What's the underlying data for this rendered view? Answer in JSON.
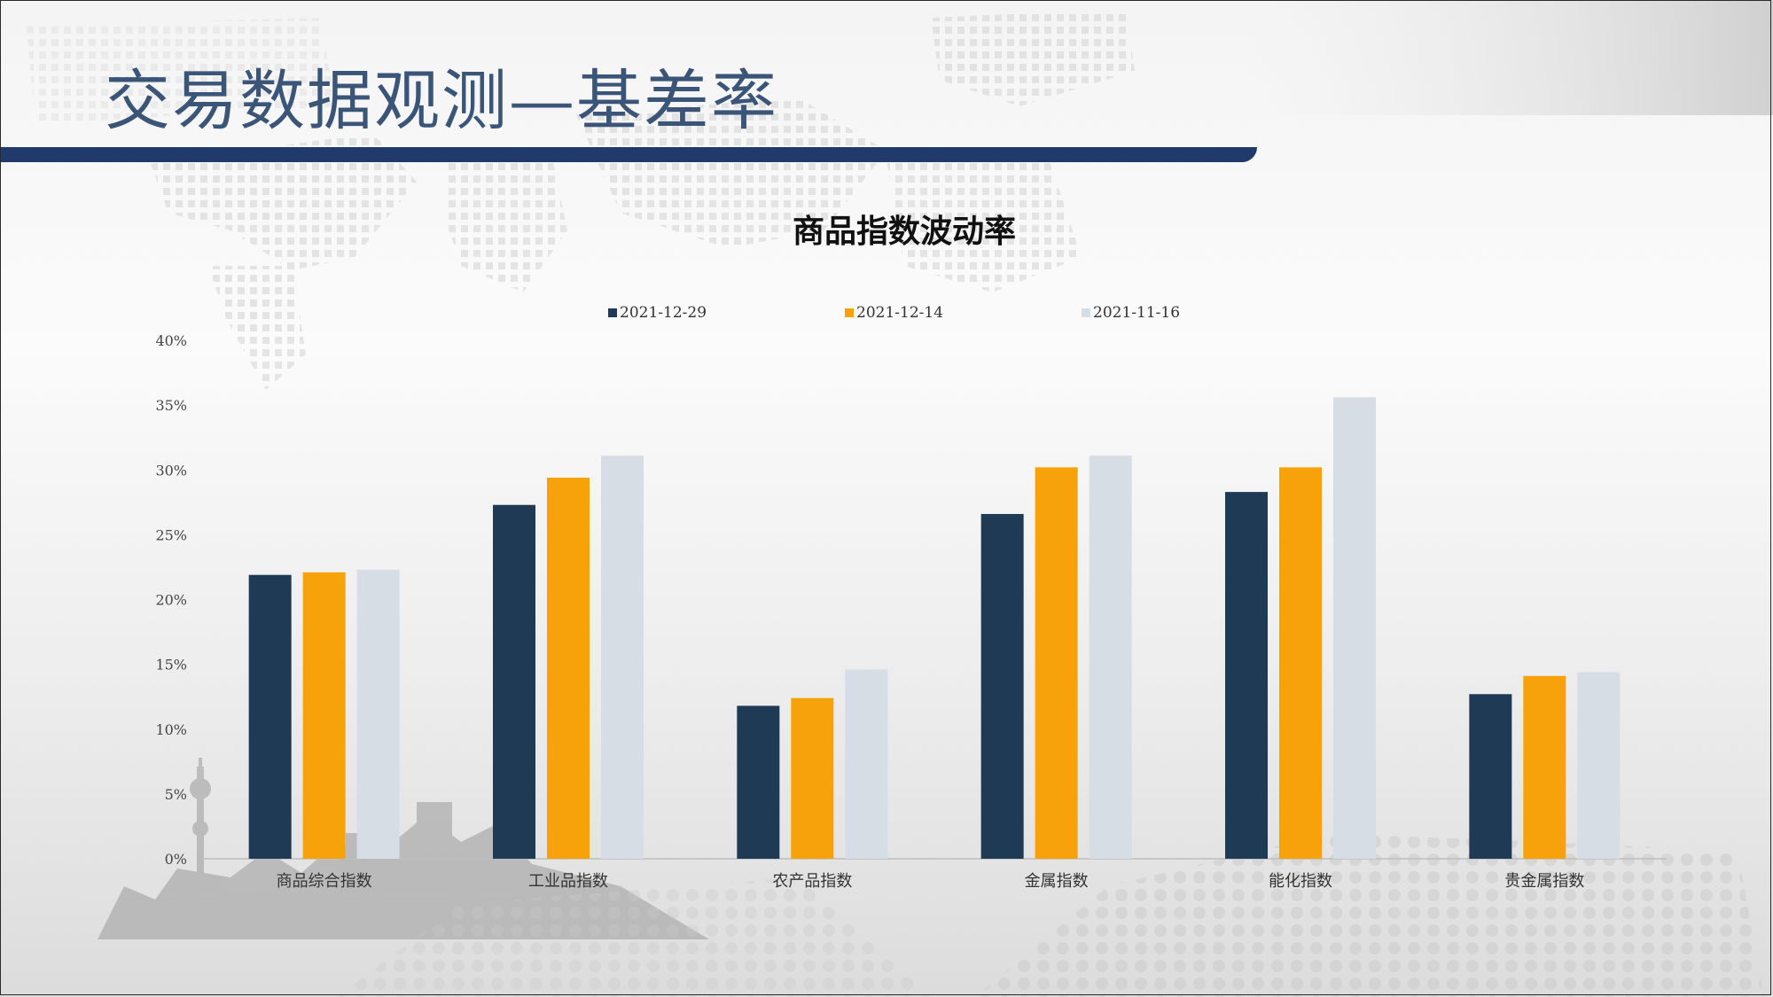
{
  "slide": {
    "title": "交易数据观测—基差率"
  },
  "colors": {
    "title_text": "#3b5578",
    "title_bar": "#1f3a6b",
    "series": [
      "#1f3a54",
      "#f7a20a",
      "#d6dde5"
    ]
  },
  "chart_data": {
    "type": "bar",
    "title": "商品指数波动率",
    "categories": [
      "商品综合指数",
      "工业品指数",
      "农产品指数",
      "金属指数",
      "能化指数",
      "贵金属指数"
    ],
    "series": [
      {
        "name": "2021-12-29",
        "values": [
          0.219,
          0.273,
          0.118,
          0.266,
          0.283,
          0.127
        ]
      },
      {
        "name": "2021-12-14",
        "values": [
          0.221,
          0.294,
          0.124,
          0.302,
          0.302,
          0.141
        ]
      },
      {
        "name": "2021-11-16",
        "values": [
          0.223,
          0.311,
          0.146,
          0.311,
          0.356,
          0.144
        ]
      }
    ],
    "ylim": [
      0,
      0.4
    ],
    "yticks": [
      "0%",
      "5%",
      "10%",
      "15%",
      "20%",
      "25%",
      "30%",
      "35%",
      "40%"
    ],
    "legend_position": "top",
    "grid": false
  }
}
